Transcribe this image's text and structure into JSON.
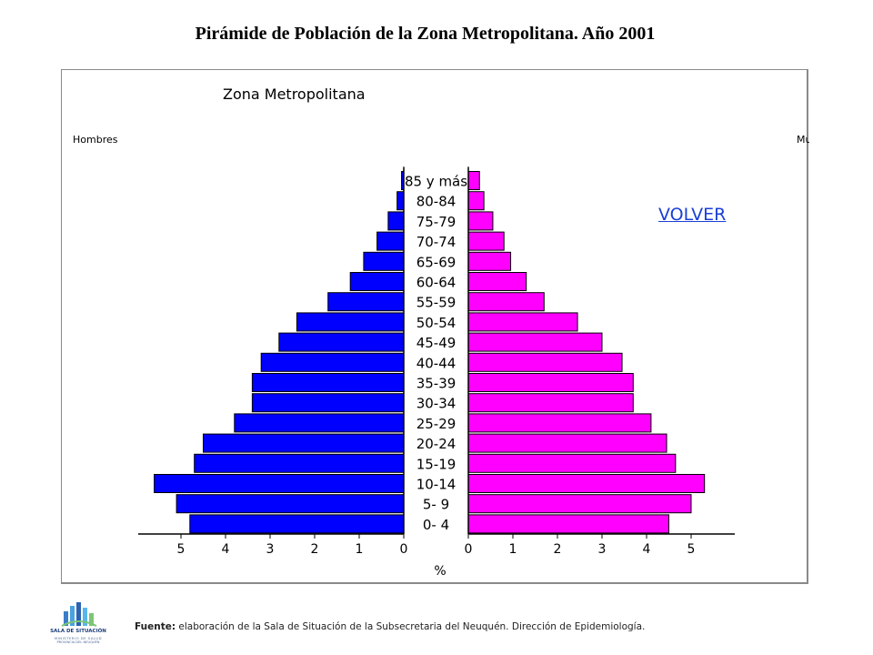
{
  "slide": {
    "title": "Pirámide de Población de la Zona Metropolitana. Año 2001",
    "volver_label": "VOLVER",
    "source_label": "Fuente:",
    "source_text": " elaboración de la Sala de Situación de la Subsecretaria del Neuquén. Dirección de Epidemiología."
  },
  "logo": {
    "name": "SALA DE SITUACIÓN",
    "line2": "MINISTERIO DE SALUD",
    "line3": "PROVINCIA DEL NEUQUÉN"
  },
  "colors": {
    "hombres": "#0000ff",
    "mujeres": "#ff00ff",
    "link": "#1a3fd6"
  },
  "chart_data": {
    "type": "bar",
    "subtitle": "Zona Metropolitana",
    "left_label": "Hombres",
    "right_label": "Mujeres",
    "xlabel": "%",
    "categories": [
      "0- 4",
      "5- 9",
      "10-14",
      "15-19",
      "20-24",
      "25-29",
      "30-34",
      "35-39",
      "40-44",
      "45-49",
      "50-54",
      "55-59",
      "60-64",
      "65-69",
      "70-74",
      "75-79",
      "80-84",
      "85 y más"
    ],
    "series": [
      {
        "name": "Hombres",
        "values": [
          4.8,
          5.1,
          5.6,
          4.7,
          4.5,
          3.8,
          3.4,
          3.4,
          3.2,
          2.8,
          2.4,
          1.7,
          1.2,
          0.9,
          0.6,
          0.35,
          0.15,
          0.05
        ]
      },
      {
        "name": "Mujeres",
        "values": [
          4.5,
          5.0,
          5.3,
          4.65,
          4.45,
          4.1,
          3.7,
          3.7,
          3.45,
          3.0,
          2.45,
          1.7,
          1.3,
          0.95,
          0.8,
          0.55,
          0.35,
          0.25
        ]
      }
    ],
    "xlim": [
      0,
      6
    ],
    "xticks": [
      "5",
      "4",
      "3",
      "2",
      "1",
      "0"
    ],
    "xticks_right": [
      "0",
      "1",
      "2",
      "3",
      "4",
      "5"
    ],
    "grid": false
  }
}
